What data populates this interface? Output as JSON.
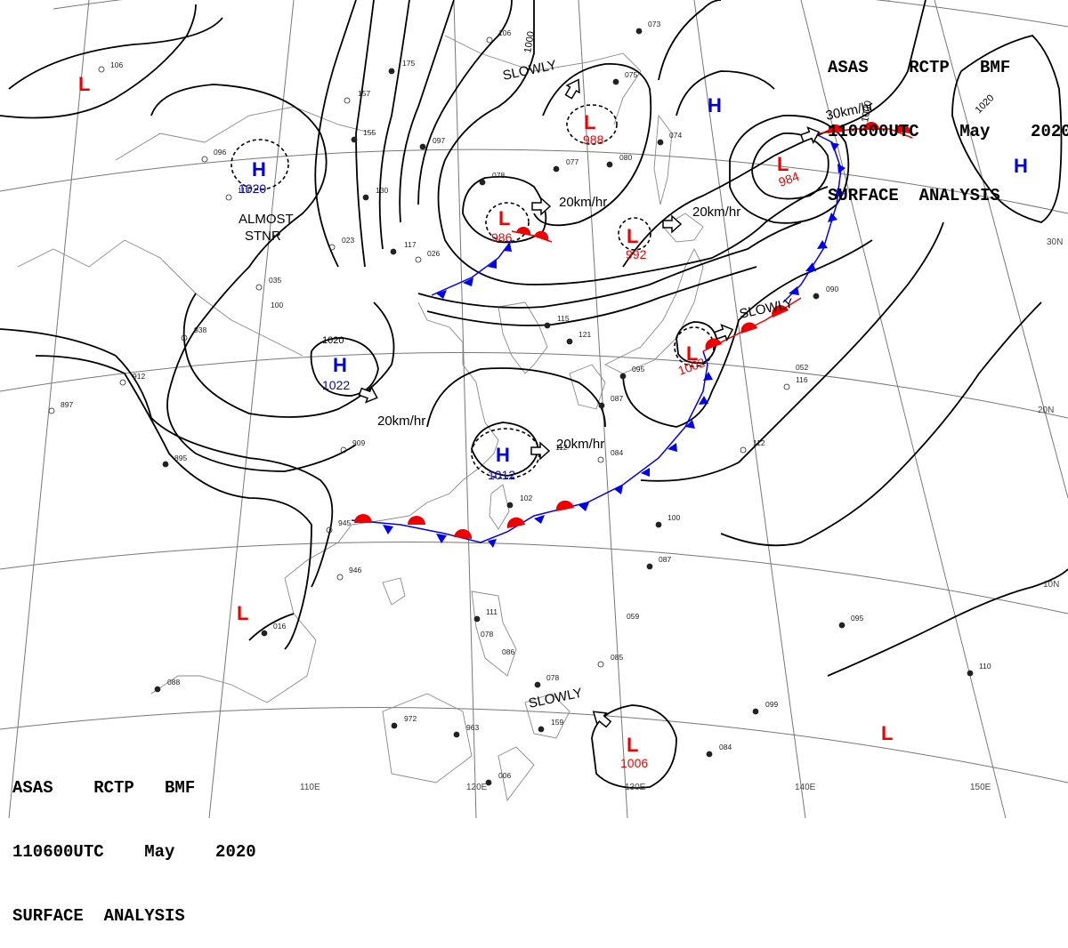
{
  "header": {
    "line1": "ASAS    RCTP   BMF",
    "line2": "110600UTC    May    2020",
    "line3": "SURFACE  ANALYSIS"
  },
  "colors": {
    "high": "#0000dd",
    "low": "#ee0000",
    "isobar": "#000000",
    "grid": "#777777",
    "coast": "#888888",
    "front_cold": "#0000ee",
    "front_warm": "#ee0000"
  },
  "lat_labels": [
    "30N",
    "20N",
    "10N"
  ],
  "lon_labels": [
    "110E",
    "120E",
    "130E",
    "140E",
    "150E"
  ],
  "isobar_labels": [
    "1000",
    "1020",
    "1020",
    "1000"
  ],
  "pressure_centers": [
    {
      "type": "L",
      "value": ""
    },
    {
      "type": "H",
      "value": "1020"
    },
    {
      "type": "H",
      "value": "1022"
    },
    {
      "type": "L",
      "value": "988"
    },
    {
      "type": "L",
      "value": "986"
    },
    {
      "type": "L",
      "value": "992"
    },
    {
      "type": "H",
      "value": ""
    },
    {
      "type": "L",
      "value": "984"
    },
    {
      "type": "H",
      "value": ""
    },
    {
      "type": "L",
      "value": "1002"
    },
    {
      "type": "H",
      "value": "1012"
    },
    {
      "type": "L",
      "value": ""
    },
    {
      "type": "L",
      "value": "1006"
    },
    {
      "type": "L",
      "value": ""
    }
  ],
  "movement_labels": [
    "SLOWLY",
    "20km/hr",
    "20km/hr",
    "30km/hr",
    "SLOWLY",
    "20km/hr",
    "20km/hr",
    "SLOWLY"
  ],
  "annotation": {
    "line1": "ALMOST",
    "line2": "STNR"
  },
  "station_numbers": [
    "106",
    "175",
    "157",
    "155",
    "097",
    "106",
    "117",
    "130",
    "096",
    "113",
    "023",
    "026",
    "035",
    "938",
    "912",
    "897",
    "895",
    "909",
    "945",
    "946",
    "016",
    "088",
    "972",
    "963",
    "006",
    "111",
    "078",
    "159",
    "085",
    "084",
    "099",
    "095",
    "110",
    "087",
    "100",
    "112",
    "116",
    "115",
    "121",
    "095",
    "087",
    "090",
    "080",
    "077",
    "078",
    "075",
    "073",
    "074",
    "084",
    "102",
    "100",
    "112",
    "078",
    "052",
    "059",
    "086"
  ]
}
